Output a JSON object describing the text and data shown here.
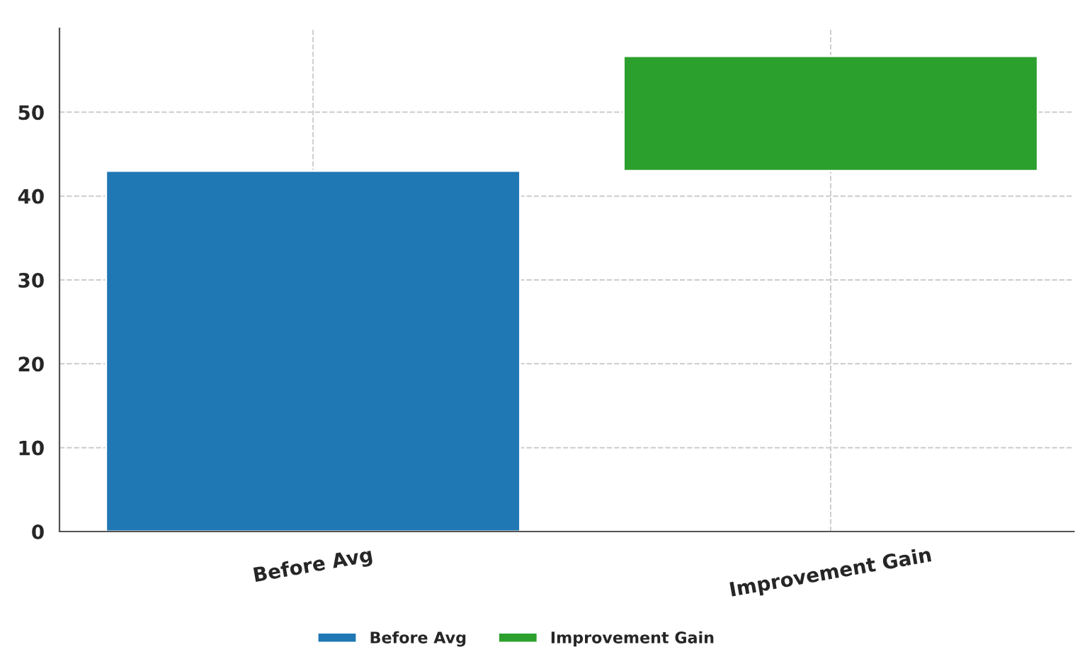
{
  "chart_data": {
    "type": "bar",
    "categories": [
      "Before Avg",
      "Improvement Gain"
    ],
    "series": [
      {
        "name": "Before Avg",
        "color": "#1f77b4",
        "values": [
          43,
          null
        ],
        "base": [
          0,
          null
        ]
      },
      {
        "name": "Improvement Gain",
        "color": "#2ca02c",
        "values": [
          null,
          13.7
        ],
        "base": [
          null,
          43
        ]
      }
    ],
    "ylim": [
      0,
      60
    ],
    "yticks": [
      0,
      10,
      20,
      30,
      40,
      50
    ],
    "grid": true,
    "legend": "bottom"
  }
}
